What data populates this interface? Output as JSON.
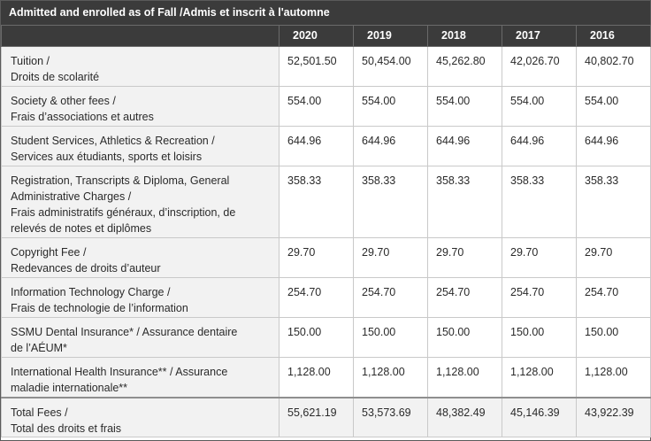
{
  "table_title": "Admitted and enrolled as of Fall /Admis et inscrit à l'automne",
  "years": [
    "2020",
    "2019",
    "2018",
    "2017",
    "2016"
  ],
  "rows": [
    {
      "label_lines": [
        "Tuition /",
        "Droits de scolarité"
      ],
      "values": [
        "52,501.50",
        "50,454.00",
        "45,262.80",
        "42,026.70",
        "40,802.70"
      ]
    },
    {
      "label_lines": [
        "Society & other fees /",
        "Frais d’associations et autres"
      ],
      "values": [
        "554.00",
        "554.00",
        "554.00",
        "554.00",
        "554.00"
      ]
    },
    {
      "label_lines": [
        "Student Services, Athletics & Recreation /",
        "Services aux étudiants, sports et loisirs"
      ],
      "values": [
        "644.96",
        "644.96",
        "644.96",
        "644.96",
        "644.96"
      ]
    },
    {
      "label_lines": [
        "Registration, Transcripts & Diploma, General",
        "Administrative Charges /",
        "Frais administratifs généraux, d’inscription, de",
        "relevés de notes et diplômes"
      ],
      "values": [
        "358.33",
        "358.33",
        "358.33",
        "358.33",
        "358.33"
      ]
    },
    {
      "label_lines": [
        "Copyright Fee /",
        "Redevances de droits d’auteur"
      ],
      "values": [
        "29.70",
        "29.70",
        "29.70",
        "29.70",
        "29.70"
      ]
    },
    {
      "label_lines": [
        "Information Technology Charge /",
        "Frais de technologie de l’information"
      ],
      "values": [
        "254.70",
        "254.70",
        "254.70",
        "254.70",
        "254.70"
      ]
    },
    {
      "label_lines": [
        "SSMU Dental Insurance* / Assurance dentaire",
        "de l’AÉUM*"
      ],
      "values": [
        "150.00",
        "150.00",
        "150.00",
        "150.00",
        "150.00"
      ]
    },
    {
      "label_lines": [
        "International Health Insurance** / Assurance",
        "maladie internationale**"
      ],
      "values": [
        "1,128.00",
        "1,128.00",
        "1,128.00",
        "1,128.00",
        "1,128.00"
      ]
    }
  ],
  "total": {
    "label_lines": [
      "Total Fees /",
      "Total des droits et frais"
    ],
    "values": [
      "55,621.19",
      "53,573.69",
      "48,382.49",
      "45,146.39",
      "43,922.39"
    ]
  }
}
